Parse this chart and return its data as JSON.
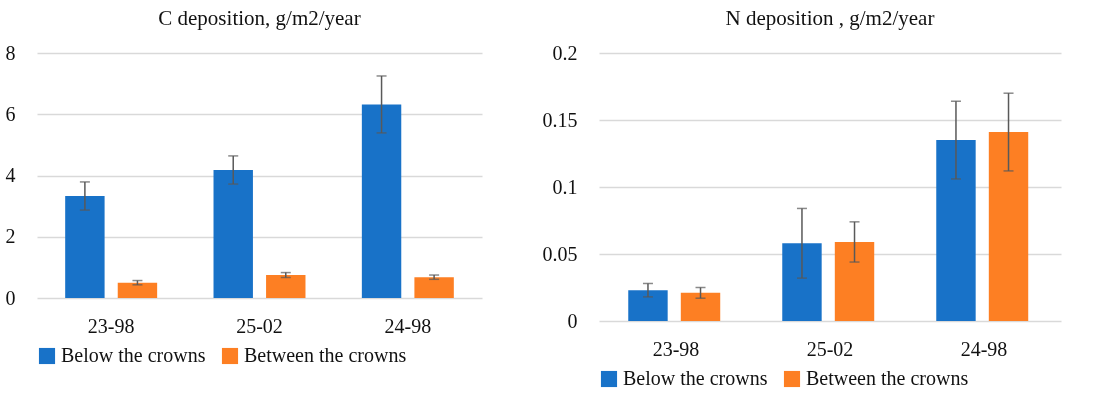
{
  "chart_data": [
    {
      "type": "bar",
      "title": "C deposition, g/m2/year",
      "categories": [
        "23-98",
        "25-02",
        "24-98"
      ],
      "ylim": [
        0,
        8
      ],
      "yticks": [
        0,
        2,
        4,
        6,
        8
      ],
      "grid": "y",
      "legend": "bottom left",
      "series": [
        {
          "name": "Below the crowns",
          "color": "#1872c8",
          "values": [
            3.33,
            4.18,
            6.32
          ],
          "errors": [
            0.46,
            0.46,
            0.93
          ]
        },
        {
          "name": "Between the crowns",
          "color": "#fd7f23",
          "values": [
            0.5,
            0.75,
            0.68
          ],
          "errors": [
            0.07,
            0.08,
            0.07
          ]
        }
      ]
    },
    {
      "type": "bar",
      "title": "N deposition , g/m2/year",
      "categories": [
        "23-98",
        "25-02",
        "24-98"
      ],
      "ylim": [
        0,
        0.2
      ],
      "yticks": [
        0,
        0.05,
        0.1,
        0.15,
        0.2
      ],
      "grid": "y",
      "legend": "bottom left",
      "series": [
        {
          "name": "Below the crowns",
          "color": "#1872c8",
          "values": [
            0.023,
            0.058,
            0.135
          ],
          "errors": [
            0.005,
            0.026,
            0.029
          ]
        },
        {
          "name": "Between the crowns",
          "color": "#fd7f23",
          "values": [
            0.021,
            0.059,
            0.141
          ],
          "errors": [
            0.004,
            0.015,
            0.029
          ]
        }
      ]
    }
  ]
}
